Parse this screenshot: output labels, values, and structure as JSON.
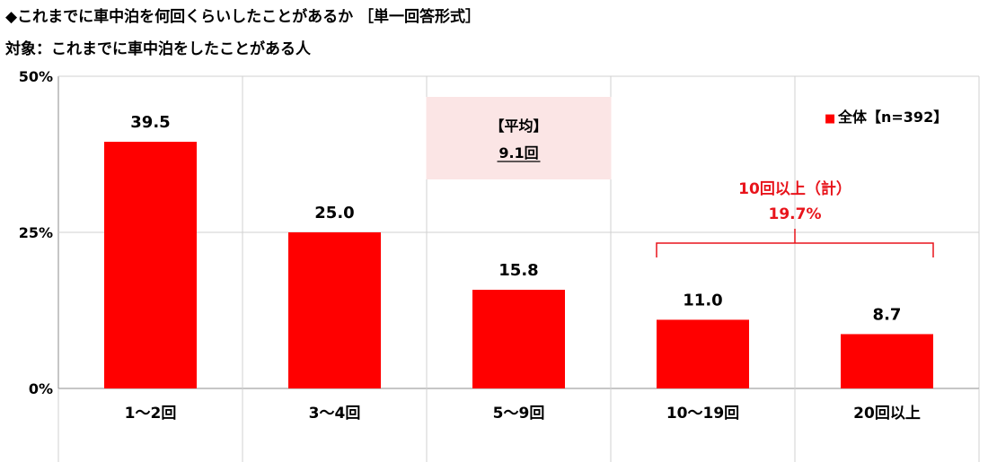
{
  "header": {
    "title": "◆これまでに車中泊を何回くらいしたことがあるか ［単一回答形式］",
    "subtitle": "対象：これまでに車中泊をしたことがある人"
  },
  "chart_data": {
    "type": "bar",
    "categories": [
      "1～2回",
      "3～4回",
      "5～9回",
      "10～19回",
      "20回以上"
    ],
    "series": [
      {
        "name": "全体【n=392】",
        "values": [
          39.5,
          25.0,
          15.8,
          11.0,
          8.7
        ],
        "color": "#ff0000"
      }
    ],
    "value_labels": [
      "39.5",
      "25.0",
      "15.8",
      "11.0",
      "8.7"
    ],
    "ylim": [
      0,
      50
    ],
    "yticks": [
      0,
      25,
      50
    ],
    "ytick_labels": [
      "0%",
      "25%",
      "50%"
    ],
    "grid": true,
    "legend": {
      "marker": "■",
      "label": "全体【n=392】",
      "position": "top-right"
    },
    "annotations": {
      "average": {
        "label": "【平均】",
        "value": "9.1回",
        "bg_color": "#fbe5e5"
      },
      "group_total": {
        "label": "10回以上（計）",
        "value": "19.7%",
        "color": "#e8141b",
        "categories": [
          3,
          4
        ]
      }
    }
  }
}
